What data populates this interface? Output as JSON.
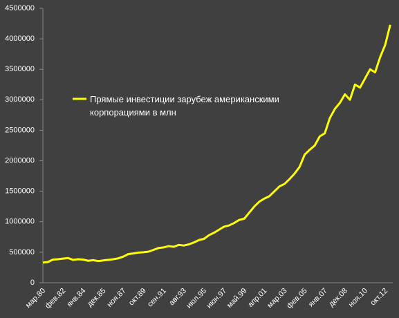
{
  "chart_data": {
    "type": "line",
    "categories": [
      "мар.80",
      null,
      null,
      null,
      "фев.82",
      null,
      null,
      null,
      "янв.84",
      null,
      null,
      null,
      "дек.85",
      null,
      null,
      null,
      "ноя.87",
      null,
      null,
      null,
      "окт.89",
      null,
      null,
      null,
      "сен.91",
      null,
      null,
      null,
      "авг.93",
      null,
      null,
      null,
      "июл.95",
      null,
      null,
      null,
      "июн.97",
      null,
      null,
      null,
      "май.99",
      null,
      null,
      null,
      "апр.01",
      null,
      null,
      null,
      "мар.03",
      null,
      null,
      null,
      "фев.05",
      null,
      null,
      null,
      "янв.07",
      null,
      null,
      null,
      "дек.08",
      null,
      null,
      null,
      "ноя.10",
      null,
      null,
      null,
      "окт.12",
      null
    ],
    "series": [
      {
        "name": "Прямые инвестиции зарубеж американскими корпорациями в млн",
        "color": "#ffff00",
        "values": [
          330000,
          340000,
          380000,
          385000,
          395000,
          405000,
          375000,
          385000,
          380000,
          360000,
          370000,
          355000,
          365000,
          375000,
          385000,
          400000,
          430000,
          470000,
          480000,
          495000,
          500000,
          510000,
          540000,
          570000,
          580000,
          600000,
          590000,
          620000,
          610000,
          630000,
          660000,
          700000,
          720000,
          780000,
          820000,
          870000,
          920000,
          940000,
          980000,
          1030000,
          1050000,
          1150000,
          1250000,
          1330000,
          1380000,
          1420000,
          1500000,
          1580000,
          1620000,
          1700000,
          1790000,
          1900000,
          2100000,
          2180000,
          2250000,
          2400000,
          2450000,
          2700000,
          2850000,
          2950000,
          3090000,
          3000000,
          3250000,
          3200000,
          3350000,
          3500000,
          3450000,
          3700000,
          3900000,
          4230000
        ]
      }
    ],
    "ylim": [
      0,
      4500000
    ],
    "yticks": [
      0,
      500000,
      1000000,
      1500000,
      2000000,
      2500000,
      3000000,
      3500000,
      4000000,
      4500000
    ],
    "grid": false
  }
}
